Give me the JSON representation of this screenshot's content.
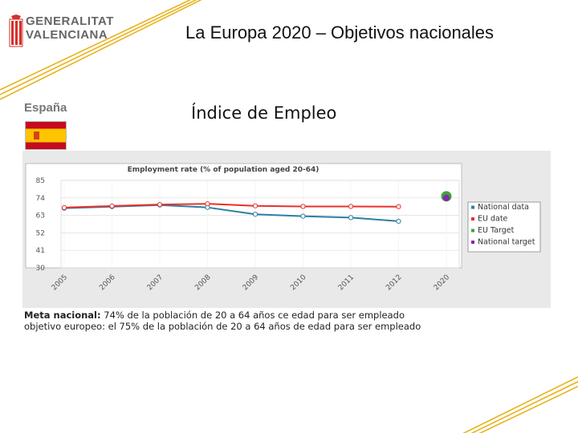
{
  "header": {
    "logo_line1": "GENERALITAT",
    "logo_line2": "VALENCIANA",
    "title": "La Europa 2020 – Objetivos nacionales"
  },
  "country": {
    "name": "España",
    "flag_colors": {
      "red": "#c60b1e",
      "yellow": "#ffc400"
    }
  },
  "subtitle": "Índice de Empleo",
  "accent_colors": {
    "deco_yellow": "#e8b21c",
    "logo_red": "#d6302b"
  },
  "chart_data": {
    "type": "line",
    "title": "Employment rate (% of population aged 20-64)",
    "categories": [
      "2005",
      "2006",
      "2007",
      "2008",
      "2009",
      "2010",
      "2011",
      "2012",
      "2020"
    ],
    "ylim": [
      30,
      85
    ],
    "yticks": [
      30,
      41,
      52,
      63,
      74,
      85
    ],
    "grid": true,
    "series": [
      {
        "name": "National data",
        "color": "#2e7ea3",
        "values": [
          67.5,
          68.5,
          69.5,
          68.0,
          63.7,
          62.5,
          61.6,
          59.3,
          null
        ]
      },
      {
        "name": "EU date",
        "color": "#e8312a",
        "values": [
          67.9,
          68.9,
          69.8,
          70.3,
          69.0,
          68.6,
          68.6,
          68.5,
          null
        ]
      },
      {
        "name": "EU Target",
        "color": "#3ea33a",
        "values": [
          null,
          null,
          null,
          null,
          null,
          null,
          null,
          null,
          75
        ]
      },
      {
        "name": "National target",
        "color": "#8a22b5",
        "values": [
          null,
          null,
          null,
          null,
          null,
          null,
          null,
          null,
          74
        ]
      }
    ],
    "legend_position": "right"
  },
  "footer": {
    "meta_label": "Meta nacional:",
    "meta_text": " 74% de la población de 20 a 64 años ce edad para ser empleado",
    "eu_text": "objetivo europeo: el 75% de la población de 20 a 64 años de edad para ser empleado"
  }
}
